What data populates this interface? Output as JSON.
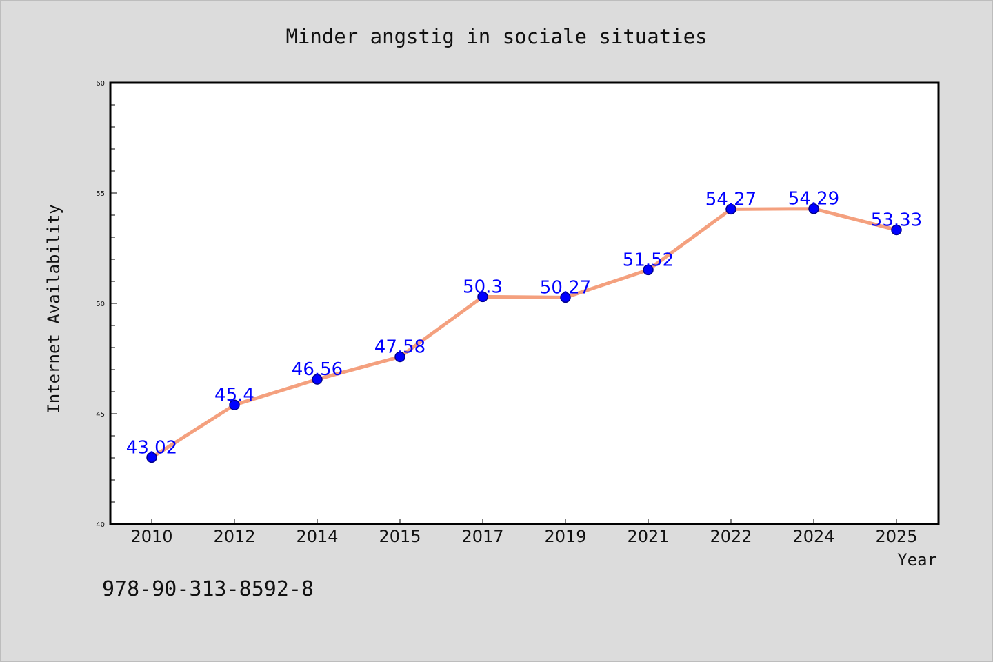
{
  "footer": {
    "code": "978-90-313-8592-8"
  },
  "chart_data": {
    "type": "line",
    "title": "Minder angstig in sociale situaties",
    "xlabel": "Year",
    "ylabel": "Internet Availability",
    "categories": [
      "2010",
      "2012",
      "2014",
      "2015",
      "2017",
      "2019",
      "2021",
      "2022",
      "2024",
      "2025"
    ],
    "values": [
      43.02,
      45.4,
      46.56,
      47.58,
      50.3,
      50.27,
      51.52,
      54.27,
      54.29,
      53.33
    ],
    "data_labels": [
      "43.02",
      "45.4",
      "46.56",
      "47.58",
      "50.3",
      "50.27",
      "51.52",
      "54.27",
      "54.29",
      "53.33"
    ],
    "ylim": [
      40,
      60
    ],
    "y_ticks": [
      40,
      45,
      50,
      55,
      60
    ],
    "y_tick_labels": [
      "40",
      "45",
      "50",
      "55",
      "60"
    ],
    "y_minor_step": 1,
    "grid": false,
    "legend": "none",
    "colors": {
      "line": "#f4a07e",
      "marker": "#0000ff",
      "marker_edge": "#00008b",
      "data_label": "#0000ff",
      "plot_background": "#ffffff",
      "figure_background": "#dcdcdc"
    }
  }
}
